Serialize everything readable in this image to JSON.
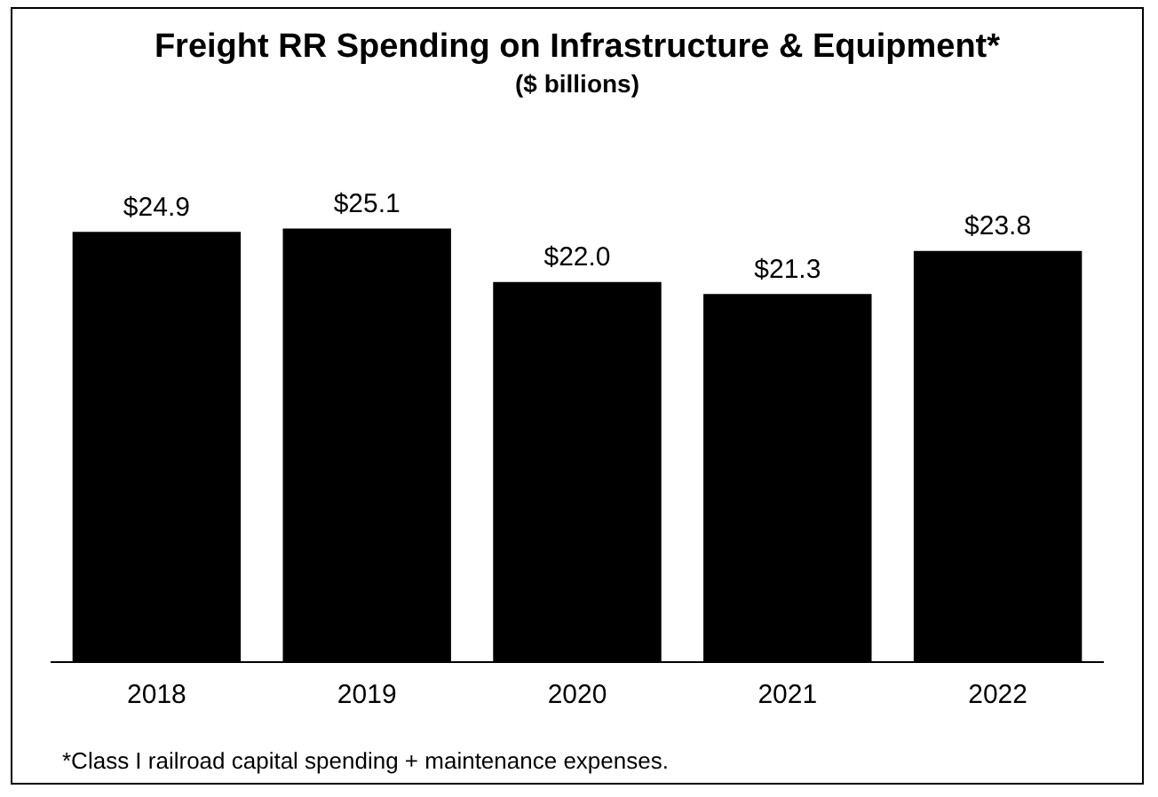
{
  "chart_data": {
    "type": "bar",
    "title": "Freight RR Spending on Infrastructure & Equipment*",
    "subtitle": "($ billions)",
    "categories": [
      "2018",
      "2019",
      "2020",
      "2021",
      "2022"
    ],
    "values": [
      24.9,
      25.1,
      22.0,
      21.3,
      23.8
    ],
    "value_labels": [
      "$24.9",
      "$25.1",
      "$22.0",
      "$21.3",
      "$23.8"
    ],
    "color": "#000000",
    "tick_labels": "x",
    "grid": false,
    "legend": false,
    "annotations": [
      "*Class I railroad capital spending + maintenance expenses."
    ]
  }
}
